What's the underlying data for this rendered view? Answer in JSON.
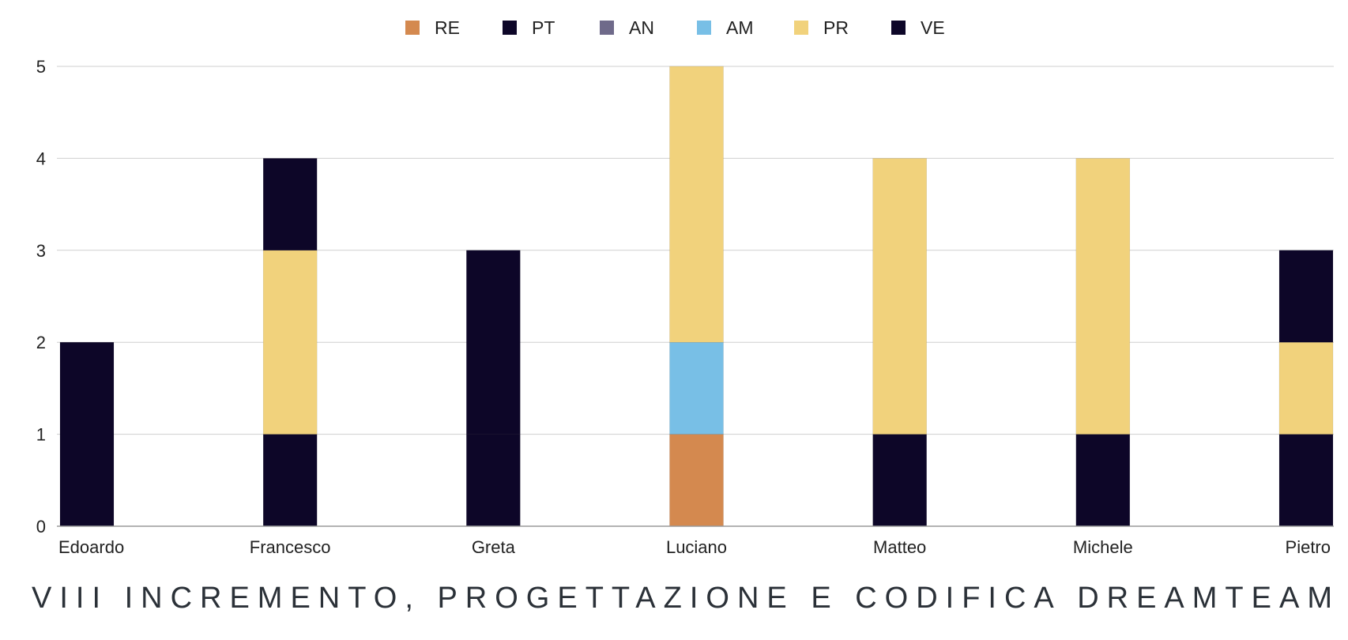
{
  "chart_data": {
    "type": "bar",
    "stacked": true,
    "categories": [
      "Edoardo",
      "Francesco",
      "Greta",
      "Luciano",
      "Matteo",
      "Michele",
      "Pietro"
    ],
    "legend": {
      "placement": "top-center",
      "entries": [
        {
          "name": "RE",
          "color": "#d4894f"
        },
        {
          "name": "PT",
          "color": "#0d0628"
        },
        {
          "name": "AN",
          "color": "#6f6a8a"
        },
        {
          "name": "AM",
          "color": "#78bfe6"
        },
        {
          "name": "PR",
          "color": "#f1d27c"
        },
        {
          "name": "VE",
          "color": "#0d0628"
        }
      ]
    },
    "series": [
      {
        "name": "RE",
        "color": "#d4894f",
        "values": [
          0,
          0,
          0,
          1,
          0,
          0,
          0
        ]
      },
      {
        "name": "PT",
        "color": "#0d0628",
        "values": [
          0,
          1,
          1,
          0,
          1,
          1,
          1
        ]
      },
      {
        "name": "AN",
        "color": "#6f6a8a",
        "values": [
          0,
          0,
          0,
          0,
          0,
          0,
          0
        ]
      },
      {
        "name": "AM",
        "color": "#78bfe6",
        "values": [
          0,
          0,
          0,
          1,
          0,
          0,
          0
        ]
      },
      {
        "name": "PR",
        "color": "#f1d27c",
        "values": [
          0,
          2,
          0,
          3,
          3,
          3,
          1
        ]
      },
      {
        "name": "VE",
        "color": "#0d0628",
        "values": [
          2,
          1,
          2,
          0,
          0,
          0,
          1
        ]
      }
    ],
    "ylim": [
      0,
      5
    ],
    "yticks": [
      "0",
      "1",
      "2",
      "3",
      "4",
      "5"
    ],
    "grid": true,
    "title": "",
    "xlabel": "",
    "ylabel": ""
  },
  "footer": {
    "left": "VIII INCREMENTO, PROGETTAZIONE E CODIFICA",
    "right": "DREAMTEAM"
  }
}
